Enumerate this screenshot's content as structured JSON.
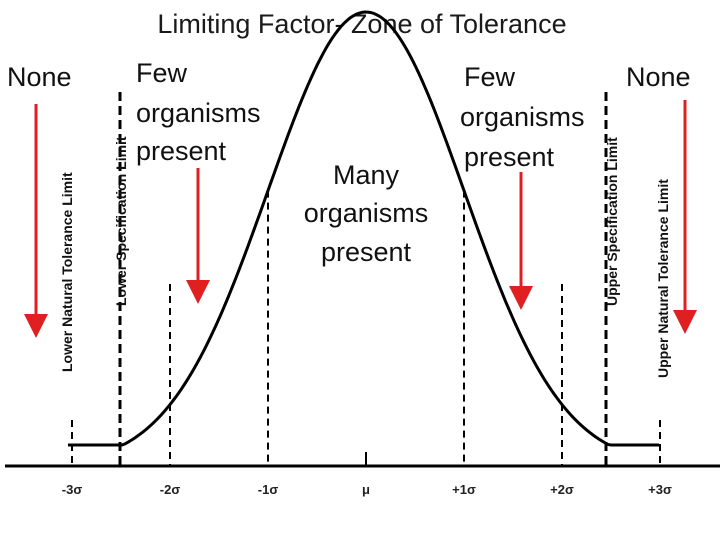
{
  "title": "Limiting Factor- Zone of Tolerance",
  "zones": {
    "left_none": "None",
    "left_few": [
      "Few",
      "organisms",
      "present"
    ],
    "center_many": [
      "Many",
      "organisms",
      "present"
    ],
    "right_few": [
      "Few",
      "organisms",
      "present"
    ],
    "right_none": "None"
  },
  "limits": {
    "lower_natural": "Lower Natural Tolerance Limit",
    "lower_spec": "Lower Specification Limit",
    "upper_spec": "Upper Specification Limit",
    "upper_natural": "Upper Natural Tolerance Limit"
  },
  "axis": {
    "ticks": [
      "-3σ",
      "-2σ",
      "-1σ",
      "μ",
      "+1σ",
      "+2σ",
      "+3σ"
    ]
  },
  "colors": {
    "arrow": "#e02020",
    "curve": "#000000",
    "text": "#111111"
  }
}
